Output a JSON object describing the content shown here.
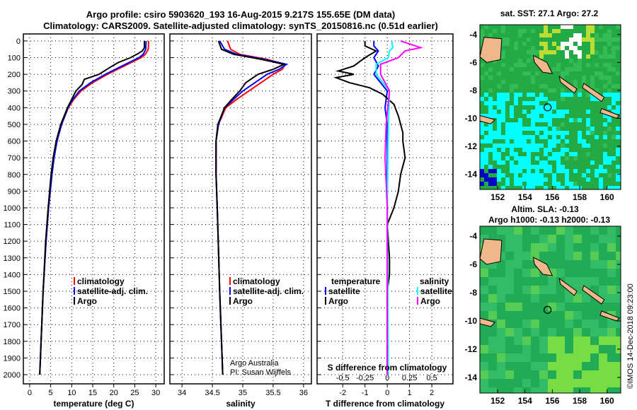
{
  "chart_data": [
    {
      "type": "line",
      "title": "Argo profile: csiro 5903620_193 16-Aug-2015 9.217S 155.65E (DM data)",
      "subtitle": "Climatology: CARS2009. Satellite-adjusted climatology: synTS_20150816.nc (0.51d earlier)",
      "xlabel": "temperature (deg C)",
      "xlim": [
        -1.5,
        32
      ],
      "ylim": [
        2055,
        -42
      ],
      "xticks": [
        0,
        5,
        10,
        15,
        20,
        25,
        30
      ],
      "yticks": [
        0,
        100,
        200,
        300,
        400,
        500,
        600,
        700,
        800,
        900,
        1000,
        1100,
        1200,
        1300,
        1400,
        1500,
        1600,
        1700,
        1800,
        1900,
        2000
      ],
      "legend": [
        "climatology",
        "satellite-adj. clim.",
        "Argo"
      ],
      "series": [
        {
          "name": "climatology",
          "color": "#ff0000",
          "depth": [
            0,
            50,
            80,
            100,
            150,
            200,
            250,
            300,
            350,
            400,
            500,
            600,
            700,
            800,
            1000,
            1200,
            1500,
            2000
          ],
          "values": [
            28.3,
            28.2,
            27.5,
            26.5,
            22.5,
            18.5,
            15,
            12.2,
            10.5,
            9.2,
            7.6,
            6.5,
            5.8,
            5.3,
            4.5,
            3.9,
            3.2,
            2.4
          ]
        },
        {
          "name": "satellite-adj. clim.",
          "color": "#0000ff",
          "depth": [
            0,
            50,
            80,
            100,
            150,
            200,
            250,
            300,
            350,
            400,
            500,
            600,
            700,
            800,
            1000,
            1200,
            1500,
            2000
          ],
          "values": [
            27.7,
            27.6,
            27,
            26,
            22,
            18,
            14.5,
            11.8,
            10.3,
            9.1,
            7.6,
            6.5,
            5.8,
            5.3,
            4.5,
            3.9,
            3.2,
            2.4
          ]
        },
        {
          "name": "Argo",
          "color": "#000000",
          "depth": [
            0,
            40,
            60,
            80,
            100,
            130,
            160,
            200,
            230,
            260,
            300,
            350,
            400,
            500,
            600,
            700,
            800,
            1000,
            1200,
            1500,
            2000
          ],
          "values": [
            27.3,
            27.3,
            26.8,
            25.5,
            24,
            21,
            19,
            16.5,
            13,
            12.5,
            11,
            10,
            9,
            7.4,
            6.3,
            5.6,
            5.1,
            4.4,
            3.8,
            3.2,
            2.4
          ]
        }
      ]
    },
    {
      "type": "line",
      "xlabel": "salinity",
      "xlim": [
        33.8,
        36.13
      ],
      "xticks": [
        34,
        34.5,
        35,
        35.5,
        36
      ],
      "legend": [
        "climatology",
        "satellite-adj. clim.",
        "Argo"
      ],
      "annotation": [
        "Argo Australia",
        "PI: Susan Wijffels"
      ],
      "series": [
        {
          "name": "climatology",
          "color": "#ff0000",
          "depth": [
            0,
            50,
            80,
            110,
            140,
            170,
            200,
            250,
            300,
            350,
            400,
            500,
            600,
            800,
            1000,
            1500,
            2000
          ],
          "values": [
            34.75,
            34.8,
            34.95,
            35.4,
            35.7,
            35.65,
            35.5,
            35.3,
            35.1,
            34.9,
            34.72,
            34.6,
            34.56,
            34.56,
            34.58,
            34.62,
            34.67
          ]
        },
        {
          "name": "satellite-adj. clim.",
          "color": "#0000ff",
          "depth": [
            0,
            50,
            80,
            110,
            140,
            170,
            200,
            250,
            300,
            350,
            400,
            500,
            600,
            800,
            1000,
            1500,
            2000
          ],
          "values": [
            34.62,
            34.7,
            34.9,
            35.35,
            35.72,
            35.6,
            35.4,
            35.2,
            35.0,
            34.85,
            34.7,
            34.6,
            34.56,
            34.56,
            34.58,
            34.62,
            34.67
          ]
        },
        {
          "name": "Argo",
          "color": "#000000",
          "depth": [
            0,
            50,
            80,
            110,
            140,
            170,
            200,
            250,
            300,
            350,
            400,
            500,
            600,
            800,
            1000,
            1500,
            2000
          ],
          "values": [
            34.6,
            34.65,
            34.85,
            35.3,
            35.68,
            35.5,
            35.25,
            35.05,
            34.95,
            34.82,
            34.7,
            34.59,
            34.56,
            34.56,
            34.58,
            34.62,
            34.67
          ]
        }
      ]
    },
    {
      "type": "line",
      "xlabel": "T difference from climatology",
      "xlim": [
        -3.15,
        2.95
      ],
      "xticks": [
        -2,
        -1,
        0,
        1,
        2
      ],
      "x2label": "S difference from climatology",
      "x2ticks": [
        "-0.5",
        "-0.25",
        "0",
        "0.25",
        "0.5"
      ],
      "legend_left_title": "temperature",
      "legend_right_title": "salinity",
      "legend": [
        "satellite",
        "Argo",
        "satellite",
        "Argo"
      ],
      "series": [
        {
          "name": "temperature satellite",
          "color": "#0000ff",
          "depth": [
            0,
            30,
            60,
            100,
            150,
            200,
            300,
            400,
            500,
            1000,
            2000
          ],
          "values": [
            -0.6,
            -0.6,
            -0.4,
            -0.6,
            -0.4,
            -0.6,
            0,
            -0.1,
            0,
            0,
            0
          ]
        },
        {
          "name": "temperature Argo",
          "color": "#000000",
          "depth": [
            0,
            30,
            60,
            100,
            150,
            180,
            200,
            220,
            250,
            280,
            320,
            380,
            450,
            500,
            550,
            600,
            700,
            800,
            900,
            1000,
            1100,
            1300,
            1400,
            1500,
            2000
          ],
          "values": [
            -1,
            -1,
            -0.5,
            -1,
            -1.5,
            -2.2,
            -1.5,
            -2.3,
            -1.7,
            -0.8,
            -0.2,
            0.3,
            0.5,
            0.6,
            0.7,
            0.7,
            0.8,
            0.6,
            0.5,
            0.3,
            0,
            0.1,
            0.1,
            0,
            0
          ]
        },
        {
          "name": "salinity satellite",
          "color": "#00ffff",
          "depth": [
            0,
            40,
            60,
            100,
            140,
            200,
            300,
            500,
            1000,
            2000
          ],
          "values": [
            0.2,
            0.25,
            0.1,
            0.05,
            -0.5,
            -0.5,
            0.1,
            0.05,
            0,
            0.05
          ]
        },
        {
          "name": "salinity Argo",
          "color": "#ff00ff",
          "depth": [
            0,
            40,
            60,
            100,
            140,
            200,
            300,
            500,
            700,
            1000,
            2000
          ],
          "values": [
            0.6,
            1.5,
            0.8,
            0.5,
            -0.3,
            -0.3,
            0.1,
            -0.05,
            -0.1,
            0,
            0
          ]
        }
      ]
    },
    {
      "type": "heatmap",
      "title": "sat. SST: 27.1 Argo: 27.2",
      "xticks": [
        152,
        154,
        156,
        158,
        160
      ],
      "yticks": [
        -4,
        -6,
        -8,
        -10,
        -12,
        -14
      ],
      "xlim": [
        150.7,
        161
      ],
      "ylim": [
        -15.1,
        -3.3
      ],
      "marker": [
        155.65,
        -9.217
      ]
    },
    {
      "type": "heatmap",
      "title": "Altim. SLA: -0.13",
      "subtitle": "Argo h1000: -0.13 h2000: -0.13",
      "xticks": [
        152,
        154,
        156,
        158,
        160
      ],
      "yticks": [
        -4,
        -6,
        -8,
        -10,
        -12,
        -14
      ],
      "xlim": [
        150.7,
        161
      ],
      "ylim": [
        -15.1,
        -3.3
      ],
      "marker": [
        155.65,
        -9.217
      ]
    }
  ],
  "credit": "©IMOS 14-Dec-2018 09:23:00"
}
